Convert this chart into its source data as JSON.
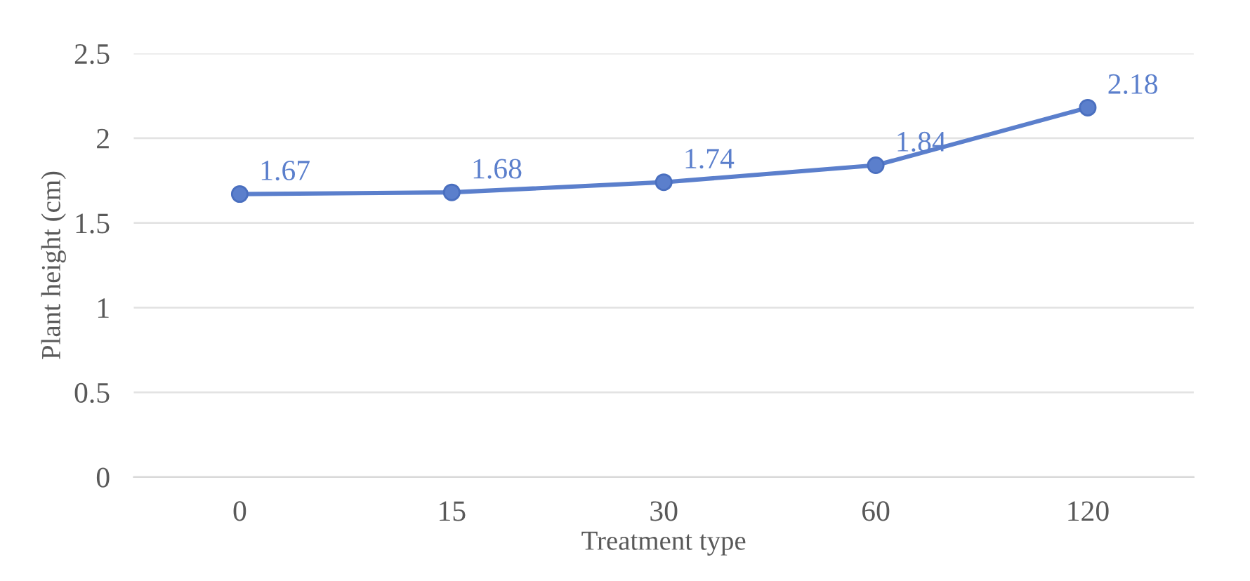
{
  "chart_data": {
    "type": "line",
    "xlabel": "Treatment type",
    "ylabel": "Plant height (cm)",
    "categories": [
      "0",
      "15",
      "30",
      "60",
      "120"
    ],
    "series": [
      {
        "color": "#5b7fcc",
        "values": [
          1.67,
          1.68,
          1.74,
          1.84,
          2.18
        ]
      }
    ],
    "ylim": [
      0,
      2.5
    ],
    "yticks": [
      0,
      0.5,
      1,
      1.5,
      2,
      2.5
    ],
    "grid": "y",
    "marker": "circle",
    "line_style": "solid",
    "data_labels": true,
    "legend": false
  }
}
